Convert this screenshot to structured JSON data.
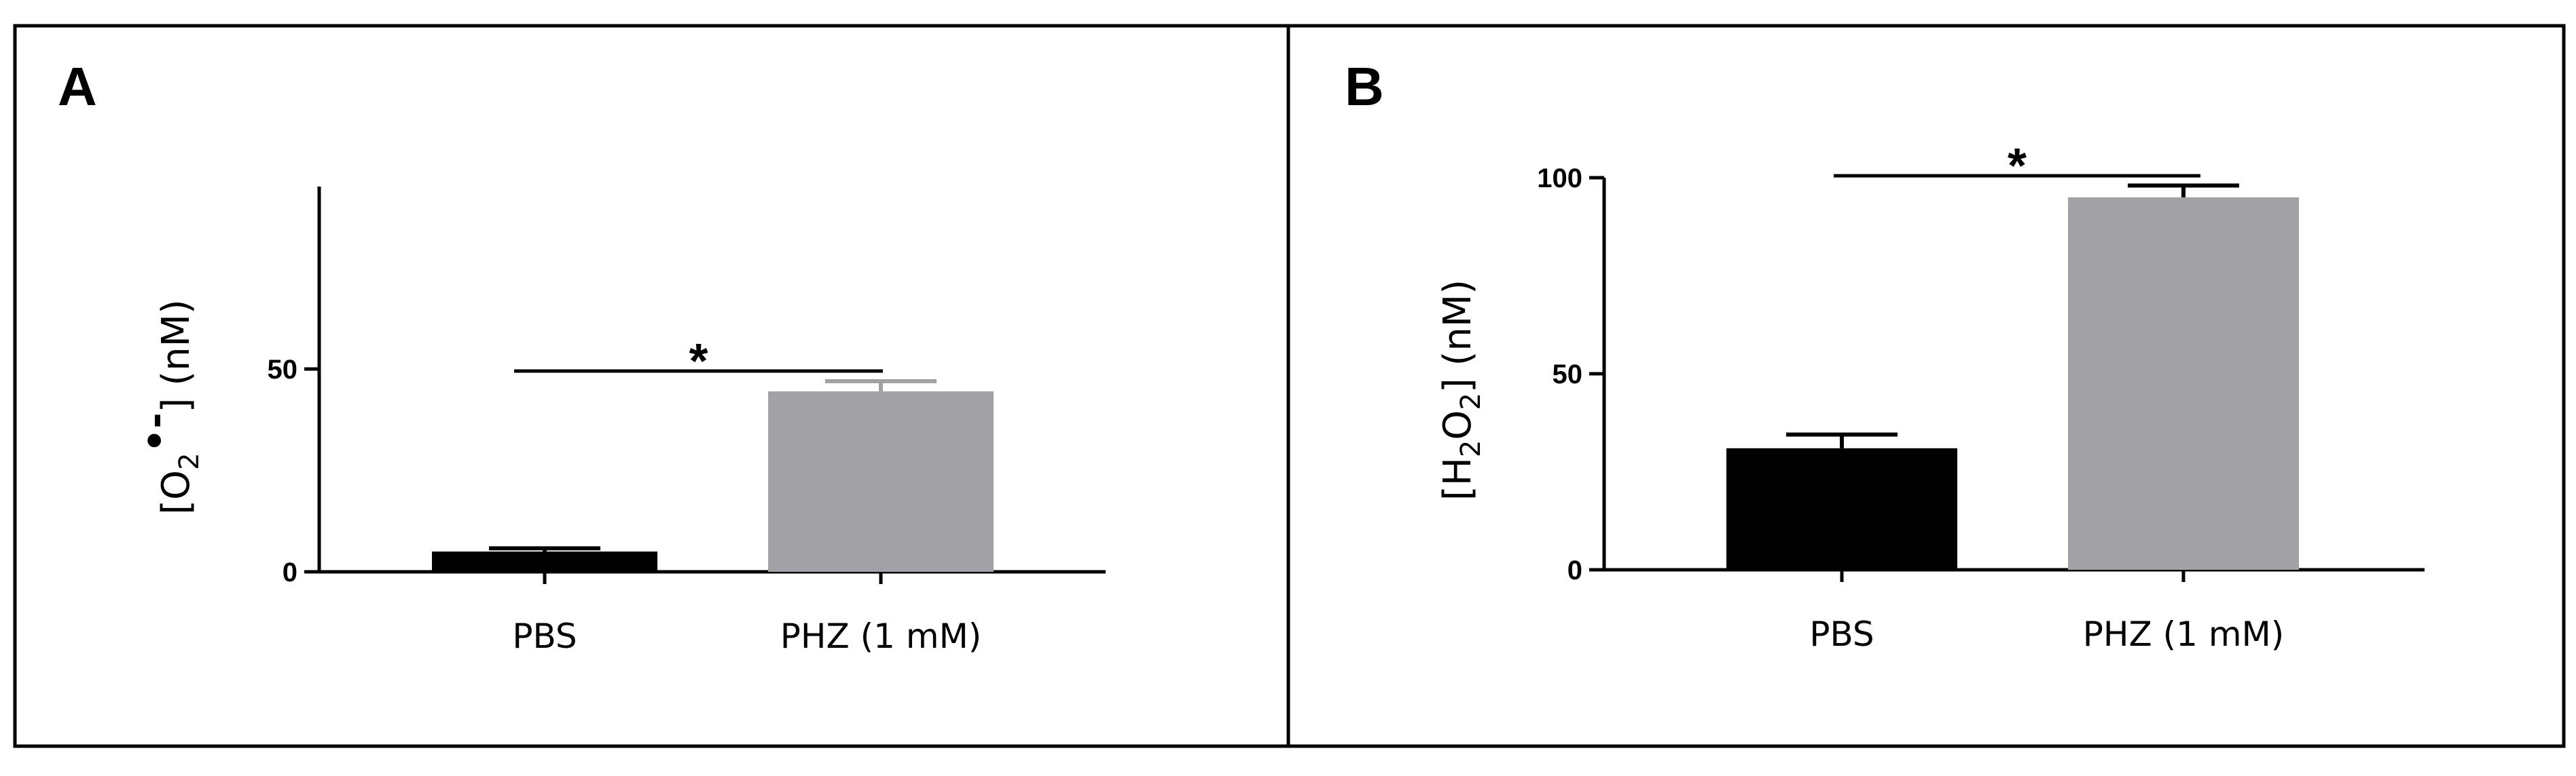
{
  "chart_data": [
    {
      "panel": "A",
      "type": "bar",
      "title": "",
      "categories": [
        "PBS",
        "PHZ (1 mM)"
      ],
      "values": [
        5,
        44.5
      ],
      "errors": [
        0.8,
        2.5
      ],
      "bar_colors": [
        "#000000",
        "#a2a1a6"
      ],
      "error_colors": [
        "#000000",
        "#a2a1a6"
      ],
      "xlabel": "",
      "ylabel": {
        "prefix": "[O",
        "sub": "2",
        "sup": "•-",
        "suffix": "] (nM)"
      },
      "ylim": [
        0,
        95
      ],
      "yticks": [
        0,
        50
      ],
      "ytick_labels": [
        "0",
        "50"
      ],
      "significance": {
        "label": "*",
        "value": 49.5
      }
    },
    {
      "panel": "B",
      "type": "bar",
      "title": "",
      "categories": [
        "PBS",
        "PHZ (1 mM)"
      ],
      "values": [
        31,
        95
      ],
      "errors": [
        3.5,
        3
      ],
      "bar_colors": [
        "#000000",
        "#a2a1a6"
      ],
      "error_colors": [
        "#000000",
        "#000000"
      ],
      "xlabel": "",
      "ylabel": {
        "p1": "[H",
        "s1": "2",
        "p2": "O",
        "s2": "2",
        "p3": "] (nM)"
      },
      "ylim": [
        0,
        100
      ],
      "yticks": [
        0,
        50,
        100
      ],
      "ytick_labels": [
        "0",
        "50",
        "100"
      ],
      "significance": {
        "label": "*",
        "value": 100.5
      }
    }
  ]
}
